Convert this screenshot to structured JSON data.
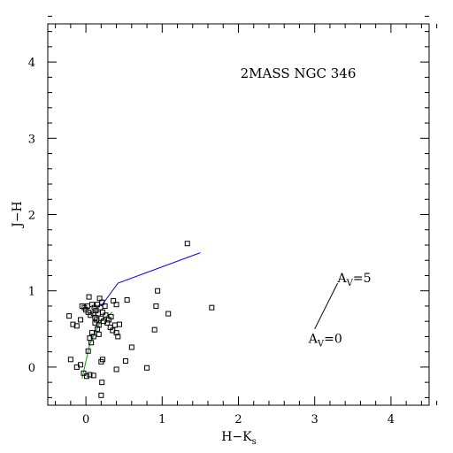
{
  "chart_data": {
    "type": "scatter",
    "title": "2MASS NGC 346",
    "xlabel": "H−K",
    "xlabel_sub": "s",
    "ylabel": "J−H",
    "xlim": [
      -0.5,
      4.5
    ],
    "ylim": [
      -0.5,
      4.5
    ],
    "xticks": [
      0,
      1,
      2,
      3,
      4
    ],
    "yticks": [
      0,
      1,
      2,
      3,
      4
    ],
    "grid": false,
    "points": [
      [
        -0.22,
        0.67
      ],
      [
        -0.17,
        0.56
      ],
      [
        -0.12,
        0.54
      ],
      [
        -0.07,
        0.62
      ],
      [
        -0.05,
        0.8
      ],
      [
        -0.02,
        0.78
      ],
      [
        0.0,
        0.75
      ],
      [
        0.02,
        0.8
      ],
      [
        0.03,
        0.72
      ],
      [
        0.04,
        0.92
      ],
      [
        0.06,
        0.68
      ],
      [
        0.08,
        0.82
      ],
      [
        0.1,
        0.7
      ],
      [
        0.11,
        0.78
      ],
      [
        0.12,
        0.65
      ],
      [
        0.13,
        0.74
      ],
      [
        0.14,
        0.62
      ],
      [
        0.15,
        0.82
      ],
      [
        0.16,
        0.7
      ],
      [
        0.17,
        0.55
      ],
      [
        0.18,
        0.9
      ],
      [
        0.19,
        0.78
      ],
      [
        0.2,
        0.64
      ],
      [
        0.21,
        0.85
      ],
      [
        0.22,
        0.72
      ],
      [
        0.23,
        0.6
      ],
      [
        0.25,
        0.8
      ],
      [
        0.26,
        0.68
      ],
      [
        0.28,
        0.58
      ],
      [
        0.3,
        0.62
      ],
      [
        0.32,
        0.52
      ],
      [
        0.33,
        0.66
      ],
      [
        0.35,
        0.48
      ],
      [
        0.36,
        0.87
      ],
      [
        0.38,
        0.55
      ],
      [
        0.4,
        0.45
      ],
      [
        0.4,
        0.82
      ],
      [
        0.42,
        0.4
      ],
      [
        0.44,
        0.56
      ],
      [
        0.15,
        0.5
      ],
      [
        0.12,
        0.58
      ],
      [
        0.08,
        0.45
      ],
      [
        0.05,
        0.38
      ],
      [
        0.1,
        0.4
      ],
      [
        0.17,
        0.43
      ],
      [
        0.07,
        0.32
      ],
      [
        0.03,
        0.21
      ],
      [
        -0.2,
        0.1
      ],
      [
        -0.12,
        0.0
      ],
      [
        -0.07,
        0.03
      ],
      [
        -0.03,
        -0.08
      ],
      [
        0.01,
        -0.12
      ],
      [
        0.05,
        -0.1
      ],
      [
        0.1,
        -0.11
      ],
      [
        0.2,
        0.07
      ],
      [
        0.22,
        0.1
      ],
      [
        0.21,
        -0.2
      ],
      [
        0.2,
        -0.37
      ],
      [
        0.4,
        -0.03
      ],
      [
        0.52,
        0.08
      ],
      [
        0.54,
        0.88
      ],
      [
        0.6,
        0.26
      ],
      [
        0.8,
        -0.01
      ],
      [
        0.9,
        0.49
      ],
      [
        0.92,
        0.8
      ],
      [
        0.94,
        1.0
      ],
      [
        1.08,
        0.7
      ],
      [
        1.33,
        1.62
      ],
      [
        1.65,
        0.78
      ]
    ],
    "lines": [
      {
        "color": "#0000ff",
        "points": [
          [
            0.2,
            0.8
          ],
          [
            0.42,
            1.1
          ],
          [
            1.5,
            1.5
          ]
        ]
      },
      {
        "color": "#00aa00",
        "points": [
          [
            -0.05,
            -0.15
          ],
          [
            0.05,
            0.3
          ],
          [
            0.2,
            0.62
          ],
          [
            0.35,
            0.72
          ]
        ]
      },
      {
        "color": "#000000",
        "points": [
          [
            3.0,
            0.5
          ],
          [
            3.3,
            1.1
          ]
        ]
      }
    ],
    "annotations": [
      {
        "base": "A",
        "sub": "V",
        "rest": "=5",
        "x": 3.3,
        "y": 1.11,
        "anchor": "start"
      },
      {
        "base": "A",
        "sub": "V",
        "rest": "=0",
        "x": 2.92,
        "y": 0.32,
        "anchor": "start"
      }
    ]
  }
}
